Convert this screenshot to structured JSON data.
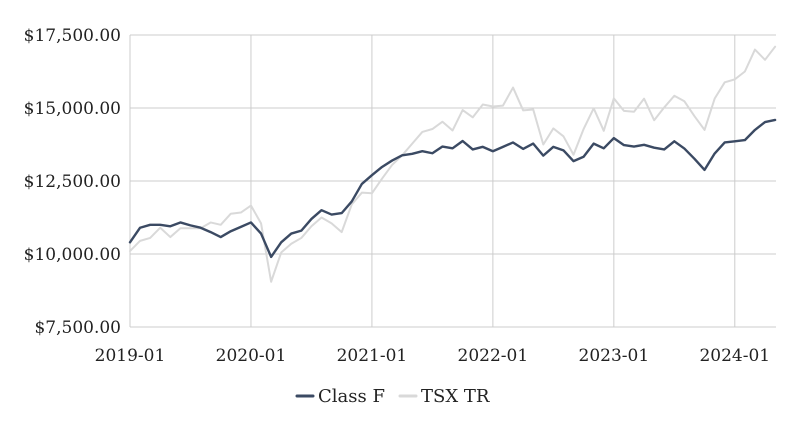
{
  "chart_data": {
    "type": "line",
    "title": "",
    "xlabel": "",
    "ylabel": "",
    "ylim": [
      7500,
      17500
    ],
    "yticks": [
      7500,
      10000,
      12500,
      15000,
      17500
    ],
    "ytick_labels": [
      "$7,500.00",
      "$10,000.00",
      "$12,500.00",
      "$15,000.00",
      "$17,500.00"
    ],
    "xticks": [
      "2019-01",
      "2020-01",
      "2021-01",
      "2022-01",
      "2023-01",
      "2024-01"
    ],
    "xlim": [
      "2019-01",
      "2024-05"
    ],
    "grid": true,
    "legend_position": "bottom-center",
    "x": [
      "2019-01",
      "2019-02",
      "2019-03",
      "2019-04",
      "2019-05",
      "2019-06",
      "2019-07",
      "2019-08",
      "2019-09",
      "2019-10",
      "2019-11",
      "2019-12",
      "2020-01",
      "2020-02",
      "2020-03",
      "2020-04",
      "2020-05",
      "2020-06",
      "2020-07",
      "2020-08",
      "2020-09",
      "2020-10",
      "2020-11",
      "2020-12",
      "2021-01",
      "2021-02",
      "2021-03",
      "2021-04",
      "2021-05",
      "2021-06",
      "2021-07",
      "2021-08",
      "2021-09",
      "2021-10",
      "2021-11",
      "2021-12",
      "2022-01",
      "2022-02",
      "2022-03",
      "2022-04",
      "2022-05",
      "2022-06",
      "2022-07",
      "2022-08",
      "2022-09",
      "2022-10",
      "2022-11",
      "2022-12",
      "2023-01",
      "2023-02",
      "2023-03",
      "2023-04",
      "2023-05",
      "2023-06",
      "2023-07",
      "2023-08",
      "2023-09",
      "2023-10",
      "2023-11",
      "2023-12",
      "2024-01",
      "2024-02",
      "2024-03",
      "2024-04",
      "2024-05"
    ],
    "series": [
      {
        "name": "Class F",
        "color": "#3b4a63",
        "values": [
          10400,
          10900,
          11000,
          11000,
          10950,
          11080,
          10980,
          10900,
          10750,
          10580,
          10780,
          10930,
          11080,
          10700,
          9900,
          10400,
          10700,
          10800,
          11200,
          11500,
          11350,
          11400,
          11800,
          12400,
          12700,
          12980,
          13200,
          13380,
          13430,
          13520,
          13450,
          13680,
          13620,
          13870,
          13580,
          13670,
          13520,
          13670,
          13820,
          13600,
          13780,
          13370,
          13670,
          13550,
          13180,
          13330,
          13780,
          13620,
          13970,
          13730,
          13680,
          13740,
          13640,
          13580,
          13860,
          13610,
          13260,
          12880,
          13440,
          13820,
          13860,
          13900,
          14250,
          14520,
          14590
        ]
      },
      {
        "name": "TSX TR",
        "color": "#d9d9d9",
        "values": [
          10100,
          10450,
          10550,
          10900,
          10580,
          10880,
          10880,
          10880,
          11080,
          11000,
          11380,
          11420,
          11660,
          11050,
          9050,
          10050,
          10350,
          10550,
          10950,
          11250,
          11050,
          10750,
          11700,
          12100,
          12080,
          12580,
          13050,
          13380,
          13780,
          14180,
          14280,
          14530,
          14230,
          14930,
          14680,
          15120,
          15050,
          15080,
          15700,
          14920,
          14950,
          13750,
          14300,
          14030,
          13400,
          14280,
          14990,
          14220,
          15330,
          14900,
          14870,
          15320,
          14580,
          15020,
          15420,
          15230,
          14720,
          14250,
          15320,
          15880,
          15980,
          16250,
          17000,
          16650,
          17100
        ]
      }
    ]
  }
}
